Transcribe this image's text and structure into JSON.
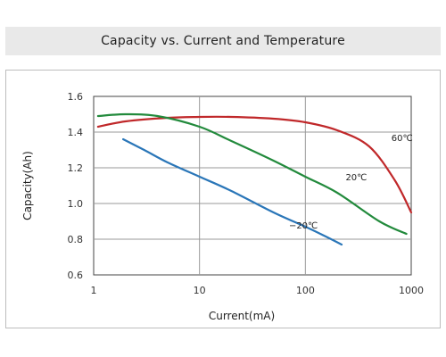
{
  "chart_data": {
    "type": "line",
    "title": "Capacity vs. Current and Temperature",
    "xlabel": "Current(mA)",
    "ylabel": "Capacity(Ah)",
    "xscale": "log",
    "xlim": [
      1,
      1000
    ],
    "ylim": [
      0.6,
      1.6
    ],
    "xticks": [
      "1",
      "10",
      "100",
      "1000"
    ],
    "yticks": [
      "0.6",
      "0.8",
      "1.0",
      "1.2",
      "1.4",
      "1.6"
    ],
    "grid": true,
    "series": [
      {
        "name": "60℃",
        "color": "#c0282a",
        "label_at": [
          650,
          1.35
        ],
        "x": [
          1.1,
          2,
          5,
          10,
          20,
          50,
          100,
          200,
          400,
          700,
          1000
        ],
        "y": [
          1.43,
          1.46,
          1.48,
          1.485,
          1.485,
          1.475,
          1.455,
          1.41,
          1.32,
          1.13,
          0.95
        ]
      },
      {
        "name": "20℃",
        "color": "#228a3c",
        "label_at": [
          240,
          1.13
        ],
        "x": [
          1.1,
          2,
          4,
          10,
          20,
          50,
          100,
          200,
          500,
          900
        ],
        "y": [
          1.49,
          1.5,
          1.49,
          1.43,
          1.35,
          1.24,
          1.15,
          1.06,
          0.9,
          0.83
        ]
      },
      {
        "name": "−20℃",
        "color": "#2a76b8",
        "label_at": [
          70,
          0.86
        ],
        "x": [
          1.9,
          3,
          5,
          10,
          20,
          50,
          100,
          150,
          220
        ],
        "y": [
          1.36,
          1.3,
          1.23,
          1.15,
          1.07,
          0.95,
          0.87,
          0.82,
          0.77
        ]
      }
    ]
  }
}
